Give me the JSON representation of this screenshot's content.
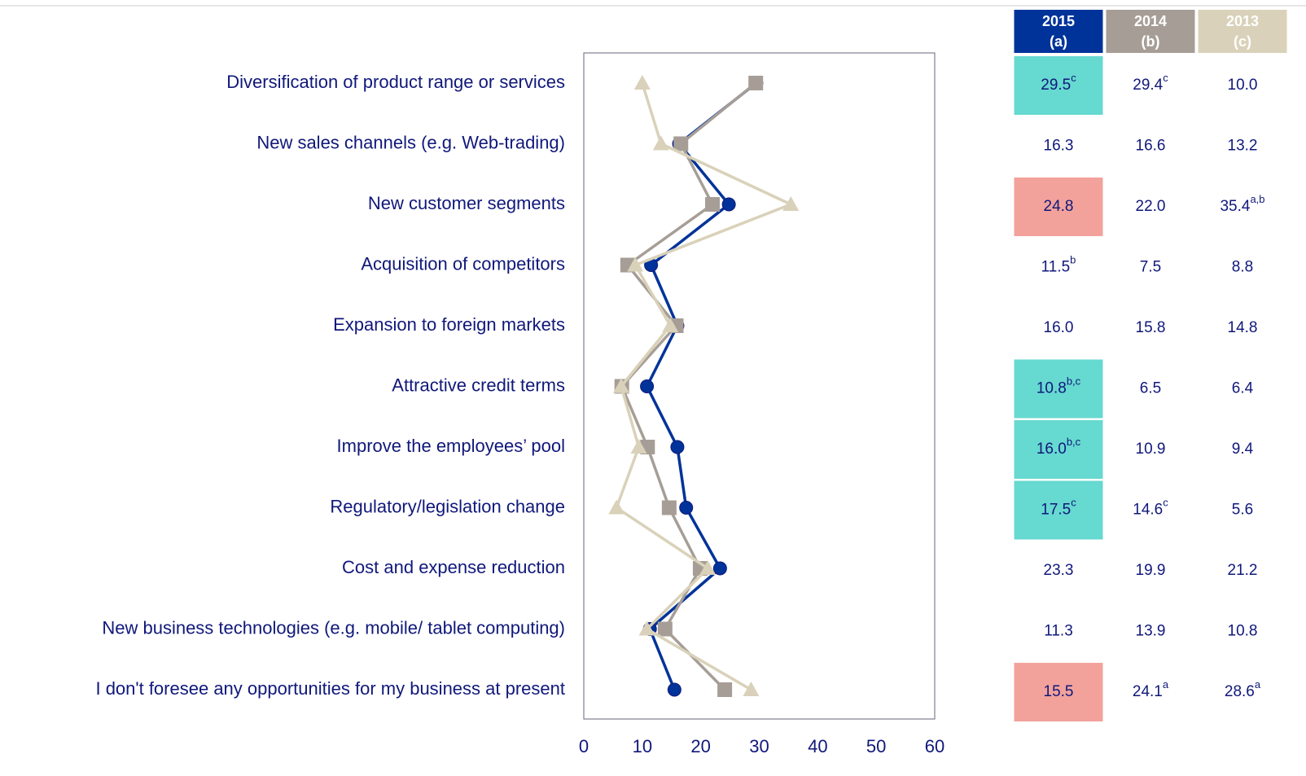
{
  "chart_data": {
    "type": "line",
    "categories": [
      "Diversification of product range or services",
      "New sales channels (e.g. Web-trading)",
      "New customer segments",
      "Acquisition of competitors",
      "Expansion to foreign markets",
      "Attractive credit terms",
      "Improve the employees’ pool",
      "Regulatory/legislation change",
      "Cost and expense reduction",
      "New business technologies (e.g. mobile/ tablet computing)",
      "I don't foresee any opportunities for my business at present"
    ],
    "xlim": [
      0,
      60
    ],
    "xticks": [
      0,
      10,
      20,
      30,
      40,
      50,
      60
    ],
    "series": [
      {
        "name": "2015",
        "tag": "(a)",
        "color": "#003399",
        "marker": "circle",
        "values": [
          29.5,
          16.3,
          24.8,
          11.5,
          16.0,
          10.8,
          16.0,
          17.5,
          23.3,
          11.3,
          15.5
        ],
        "value_labels": [
          "29.5",
          "16.3",
          "24.8",
          "11.5",
          "16.0",
          "10.8",
          "16.0",
          "17.5",
          "23.3",
          "11.3",
          "15.5"
        ],
        "superscripts": [
          "c",
          null,
          null,
          "b",
          null,
          "b,c",
          "b,c",
          "c",
          null,
          null,
          null
        ],
        "highlights": [
          "#66d9d0",
          null,
          "#f2a29b",
          null,
          null,
          "#66d9d0",
          "#66d9d0",
          "#66d9d0",
          null,
          null,
          "#f2a29b"
        ]
      },
      {
        "name": "2014",
        "tag": "(b)",
        "color": "#a69e96",
        "marker": "square",
        "values": [
          29.4,
          16.6,
          22.0,
          7.5,
          15.8,
          6.5,
          10.9,
          14.6,
          19.9,
          13.9,
          24.1
        ],
        "value_labels": [
          "29.4",
          "16.6",
          "22.0",
          "7.5",
          "15.8",
          "6.5",
          "10.9",
          "14.6",
          "19.9",
          "13.9",
          "24.1"
        ],
        "superscripts": [
          "c",
          null,
          null,
          null,
          null,
          null,
          null,
          "c",
          null,
          null,
          "a"
        ],
        "highlights": [
          null,
          null,
          null,
          null,
          null,
          null,
          null,
          null,
          null,
          null,
          null
        ]
      },
      {
        "name": "2013",
        "tag": "(c)",
        "color": "#d9d1b9",
        "marker": "triangle",
        "values": [
          10.0,
          13.2,
          35.4,
          8.8,
          14.8,
          6.4,
          9.4,
          5.6,
          21.2,
          10.8,
          28.6
        ],
        "value_labels": [
          "10.0",
          "13.2",
          "35.4",
          "8.8",
          "14.8",
          "6.4",
          "9.4",
          "5.6",
          "21.2",
          "10.8",
          "28.6"
        ],
        "superscripts": [
          null,
          null,
          "a,b",
          null,
          null,
          null,
          null,
          null,
          null,
          null,
          "a"
        ],
        "highlights": [
          null,
          null,
          null,
          null,
          null,
          null,
          null,
          null,
          null,
          null,
          null
        ]
      }
    ]
  }
}
